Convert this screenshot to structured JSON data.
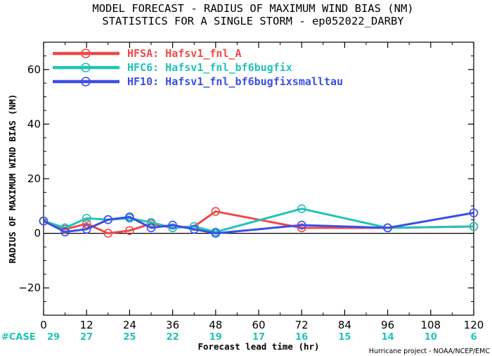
{
  "colors": {
    "HFSA": "#f04848",
    "HFC6": "#22c3b8",
    "HF10": "#3d4ee6",
    "case": "#22c3b8"
  },
  "chart_data": {
    "type": "line",
    "title": "MODEL FORECAST - RADIUS OF MAXIMUM WIND BIAS (NM)",
    "subtitle": "STATISTICS FOR A SINGLE STORM - ep052022_DARBY",
    "xlabel": "Forecast lead time (hr)",
    "ylabel": "RADIUS OF MAXIMUM WIND BIAS (NM)",
    "xlim": [
      0,
      120
    ],
    "ylim": [
      -30,
      70
    ],
    "xticks": [
      0,
      12,
      24,
      36,
      48,
      60,
      72,
      84,
      96,
      108,
      120
    ],
    "yticks": [
      -20,
      0,
      20,
      40,
      60
    ],
    "grid": false,
    "legend_position": "top-left",
    "case_label": "#CASE",
    "cases": [
      29,
      27,
      25,
      22,
      19,
      17,
      16,
      15,
      14,
      10,
      6
    ],
    "credit": "Hurricane project - NOAA/NCEP/EMC",
    "series": [
      {
        "key": "HFSA",
        "name": "HFSA: Hafsv1_fnl_A",
        "x": [
          0,
          6,
          12,
          18,
          24,
          30,
          36,
          42,
          48,
          72,
          96,
          120
        ],
        "y": [
          4.5,
          1.5,
          3.5,
          0,
          1,
          3.5,
          2,
          2.5,
          8,
          2,
          2,
          2.5
        ]
      },
      {
        "key": "HFC6",
        "name": "HFC6: Hafsv1_fnl_bf6bugfix",
        "x": [
          0,
          6,
          12,
          18,
          24,
          30,
          36,
          42,
          48,
          72,
          96,
          120
        ],
        "y": [
          4.5,
          2,
          5.5,
          5,
          5.5,
          4,
          2,
          2.5,
          0.5,
          9,
          2,
          2.5
        ]
      },
      {
        "key": "HF10",
        "name": "HF10: Hafsv1_fnl_bf6bugfixsmalltau",
        "x": [
          0,
          6,
          12,
          18,
          24,
          30,
          36,
          42,
          48,
          72,
          96,
          120
        ],
        "y": [
          4.5,
          0.5,
          1.5,
          5,
          6,
          2,
          3,
          1.5,
          0,
          3,
          2,
          7.5
        ]
      }
    ]
  }
}
